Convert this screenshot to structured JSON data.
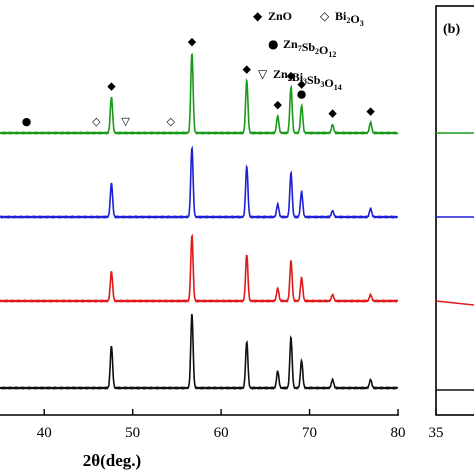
{
  "chart_data": [
    {
      "type": "line",
      "xlabel": "2θ(deg.)",
      "ylabel": "",
      "xlim": [
        35,
        80
      ],
      "xticks": [
        40,
        50,
        60,
        70,
        80
      ],
      "grid": false,
      "legend": {
        "placement": "top-right",
        "entries": [
          {
            "symbol": "◆",
            "label": "ZnO"
          },
          {
            "symbol": "◇",
            "label": "Bi",
            "sub": "2",
            "label2": "O",
            "sub2": "3"
          },
          {
            "symbol": "●",
            "label": "Zn",
            "sub": "7",
            "label2": "Sb",
            "sub2": "2",
            "label3": "O",
            "sub3": "12"
          },
          {
            "symbol": "▽",
            "label": "Zn",
            "sub": "2",
            "label2": "Bi",
            "sub2": "3",
            "label3": "Sb",
            "sub3": "3",
            "label4": "O",
            "sub4": "14"
          }
        ]
      },
      "series": [
        {
          "color": "#1a9a1a",
          "baseline": 4,
          "peaks": [
            [
              47.6,
              17
            ],
            [
              56.7,
              38
            ],
            [
              62.9,
              25
            ],
            [
              66.4,
              8
            ],
            [
              67.9,
              22
            ],
            [
              69.1,
              13
            ],
            [
              72.6,
              4
            ],
            [
              76.9,
              5
            ]
          ]
        },
        {
          "color": "#1f1fd6",
          "baseline": 3,
          "peaks": [
            [
              47.6,
              16
            ],
            [
              56.7,
              33
            ],
            [
              62.9,
              24
            ],
            [
              66.4,
              6
            ],
            [
              67.9,
              21
            ],
            [
              69.1,
              12
            ],
            [
              72.6,
              3
            ],
            [
              76.9,
              4
            ]
          ]
        },
        {
          "color": "#e01a1a",
          "baseline": 2,
          "peaks": [
            [
              47.6,
              14
            ],
            [
              56.7,
              31
            ],
            [
              62.9,
              22
            ],
            [
              66.4,
              6
            ],
            [
              67.9,
              19
            ],
            [
              69.1,
              11
            ],
            [
              72.6,
              3
            ],
            [
              76.9,
              3
            ]
          ]
        },
        {
          "color": "#111111",
          "baseline": 1,
          "peaks": [
            [
              47.6,
              20
            ],
            [
              56.7,
              35
            ],
            [
              62.9,
              22
            ],
            [
              66.4,
              8
            ],
            [
              67.9,
              24
            ],
            [
              69.1,
              13
            ],
            [
              72.6,
              4
            ],
            [
              76.9,
              4
            ]
          ]
        }
      ],
      "markers": [
        {
          "symbol": "●",
          "x": 38.0
        },
        {
          "symbol": "◇",
          "x": 45.9
        },
        {
          "symbol": "◆",
          "x": 47.6
        },
        {
          "symbol": "▽",
          "x": 49.2
        },
        {
          "symbol": "◇",
          "x": 54.3
        },
        {
          "symbol": "◆",
          "x": 56.7
        },
        {
          "symbol": "◆",
          "x": 62.9
        },
        {
          "symbol": "◆",
          "x": 66.4
        },
        {
          "symbol": "◆",
          "x": 67.9
        },
        {
          "symbol": "●",
          "x": 69.1
        },
        {
          "symbol": "◆",
          "x": 69.1
        },
        {
          "symbol": "◆",
          "x": 72.6
        },
        {
          "symbol": "◆",
          "x": 76.9
        }
      ]
    },
    {
      "type": "line",
      "panel_label": "(b)",
      "xticks": [
        35
      ],
      "series_colors": [
        "#1a9a1a",
        "#1f1fd6",
        "#e01a1a",
        "#111111"
      ]
    }
  ]
}
